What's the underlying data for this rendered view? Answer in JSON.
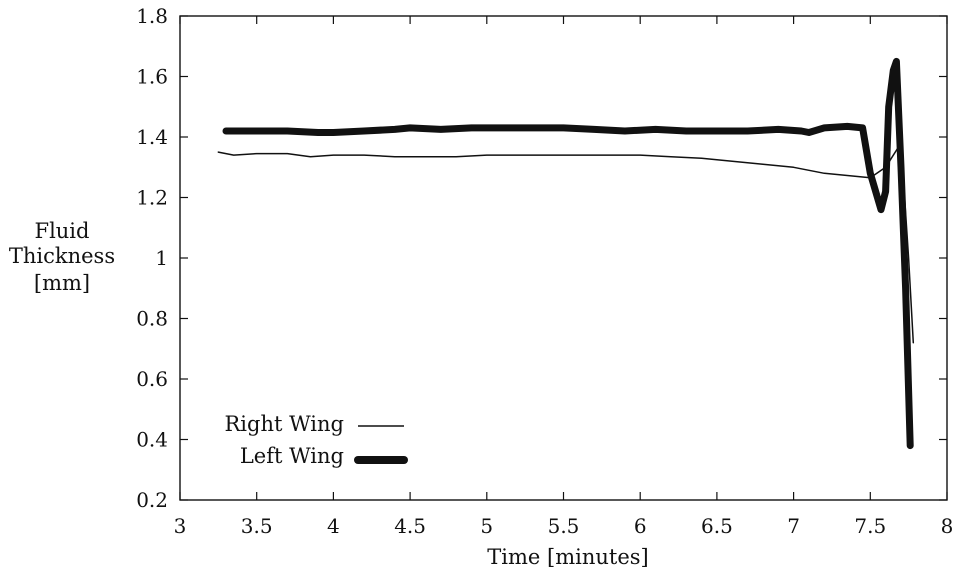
{
  "chart_data": {
    "type": "line",
    "title": "",
    "xlabel": "Time [minutes]",
    "ylabel": [
      "Fluid",
      "Thickness",
      "[mm]"
    ],
    "xlim": [
      3,
      8
    ],
    "ylim": [
      0.2,
      1.8
    ],
    "xticks": [
      "3",
      "3.5",
      "4",
      "4.5",
      "5",
      "5.5",
      "6",
      "6.5",
      "7",
      "7.5",
      "8"
    ],
    "yticks": [
      "0.2",
      "0.4",
      "0.6",
      "0.8",
      "1",
      "1.2",
      "1.4",
      "1.6",
      "1.8"
    ],
    "grid": false,
    "legend_position": "bottom-left",
    "series": [
      {
        "name": "Right Wing",
        "style": "thin",
        "color": "#111111",
        "x": [
          3.25,
          3.35,
          3.5,
          3.7,
          3.85,
          4.0,
          4.2,
          4.4,
          4.6,
          4.8,
          5.0,
          5.2,
          5.4,
          5.6,
          5.8,
          6.0,
          6.2,
          6.4,
          6.6,
          6.8,
          7.0,
          7.2,
          7.4,
          7.5,
          7.6,
          7.7,
          7.75,
          7.78
        ],
        "y": [
          1.35,
          1.34,
          1.345,
          1.345,
          1.335,
          1.34,
          1.34,
          1.335,
          1.335,
          1.335,
          1.34,
          1.34,
          1.34,
          1.34,
          1.34,
          1.34,
          1.335,
          1.33,
          1.32,
          1.31,
          1.3,
          1.28,
          1.27,
          1.265,
          1.3,
          1.38,
          1.0,
          0.72
        ]
      },
      {
        "name": "Left Wing",
        "style": "thick",
        "color": "#111111",
        "x": [
          3.3,
          3.5,
          3.7,
          3.9,
          4.0,
          4.2,
          4.4,
          4.5,
          4.7,
          4.9,
          5.1,
          5.3,
          5.5,
          5.7,
          5.9,
          6.1,
          6.3,
          6.5,
          6.7,
          6.9,
          7.05,
          7.1,
          7.2,
          7.35,
          7.45,
          7.5,
          7.57,
          7.6,
          7.62,
          7.65,
          7.67,
          7.7,
          7.73,
          7.76
        ],
        "y": [
          1.42,
          1.42,
          1.42,
          1.415,
          1.415,
          1.42,
          1.425,
          1.43,
          1.425,
          1.43,
          1.43,
          1.43,
          1.43,
          1.425,
          1.42,
          1.425,
          1.42,
          1.42,
          1.42,
          1.425,
          1.42,
          1.415,
          1.43,
          1.435,
          1.43,
          1.28,
          1.16,
          1.22,
          1.5,
          1.62,
          1.65,
          1.3,
          0.9,
          0.38
        ]
      }
    ]
  }
}
